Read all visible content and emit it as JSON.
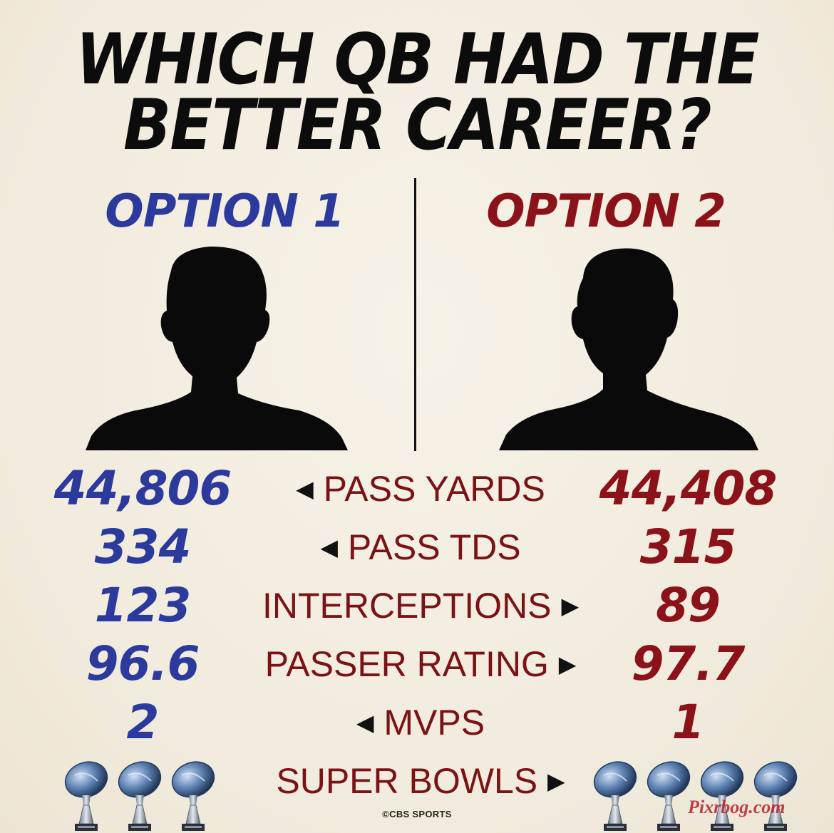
{
  "title_line1": "WHICH QB HAD THE",
  "title_line2": "BETTER CAREER?",
  "option1_label": "OPTION 1",
  "option2_label": "OPTION 2",
  "colors": {
    "option1": "#2b3a9c",
    "option2": "#8b1218",
    "background": "#f4efe3"
  },
  "stats": [
    {
      "label": "PASS YARDS",
      "option1": "44,806",
      "option2": "44,408",
      "arrow": "left"
    },
    {
      "label": "PASS TDS",
      "option1": "334",
      "option2": "315",
      "arrow": "left"
    },
    {
      "label": "INTERCEPTIONS",
      "option1": "123",
      "option2": "89",
      "arrow": "right"
    },
    {
      "label": "PASSER RATING",
      "option1": "96.6",
      "option2": "97.7",
      "arrow": "right"
    },
    {
      "label": "MVPS",
      "option1": "2",
      "option2": "1",
      "arrow": "left"
    },
    {
      "label": "SUPER BOWLS",
      "arrow": "right"
    }
  ],
  "super_bowls": {
    "option1": 3,
    "option2": 4,
    "icon": "lombardi-trophy-icon"
  },
  "footer_logo": "©CBS SPORTS",
  "watermark": "Pixrbog.com"
}
